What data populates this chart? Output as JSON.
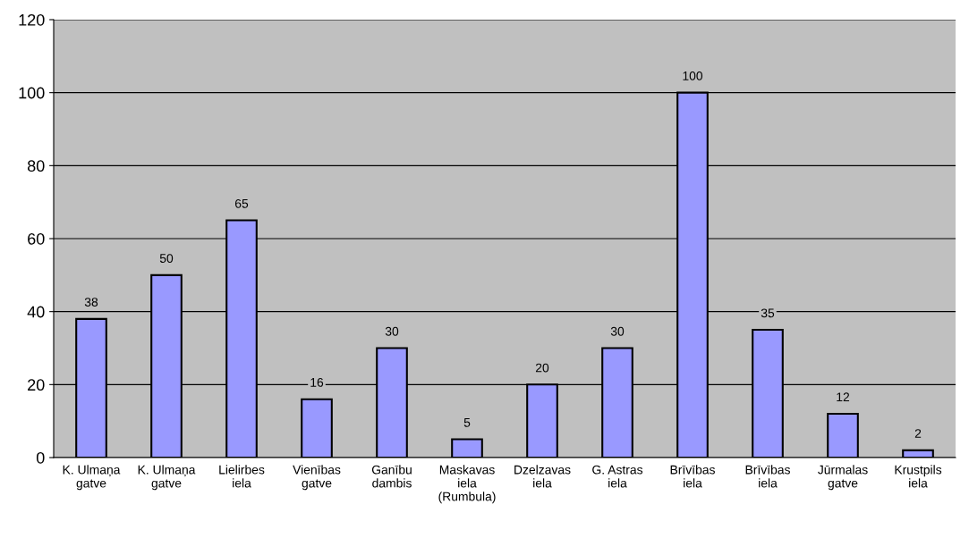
{
  "chart_data": {
    "type": "bar",
    "categories": [
      "K. Ulmaņa gatve",
      "K. Ulmaņa gatve",
      "Lielirbes iela",
      "Vienības gatve",
      "Ganību dambis",
      "Maskavas iela (Rumbula)",
      "Dzelzavas iela",
      "G. Astras iela",
      "Brīvības iela",
      "Brīvības iela",
      "Jūrmalas gatve",
      "Krustpils iela"
    ],
    "values": [
      38,
      50,
      65,
      16,
      30,
      5,
      20,
      30,
      100,
      35,
      12,
      2
    ],
    "color": "#9999ff",
    "ylim": [
      0,
      120
    ],
    "yticks": [
      0,
      20,
      40,
      60,
      80,
      100,
      120
    ],
    "grid": "y",
    "data_labels": true,
    "legend": false
  }
}
